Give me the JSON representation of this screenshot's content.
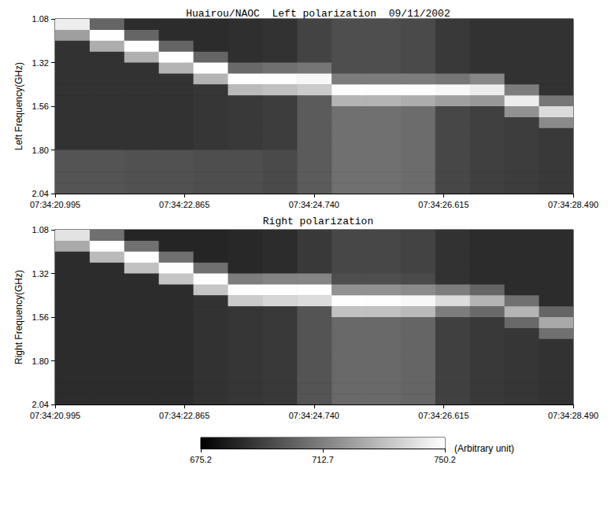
{
  "chart_data": {
    "type": "heatmap",
    "colorbar": {
      "range": [
        675.2,
        750.2
      ],
      "ticks": [
        675.2,
        712.7,
        750.2
      ],
      "label": "(Arbitrary unit)",
      "colors": [
        "#000000",
        "#ffffff"
      ]
    },
    "panels": [
      {
        "title": "Huairou/NAOC  Left polarization  09/11/2002",
        "y_label": "Left Frequency(GHz)",
        "xlim": [
          20.995,
          28.49
        ],
        "xticks": [
          {
            "value": 20.995,
            "label": "07:34:20.995"
          },
          {
            "value": 22.865,
            "label": "07:34:22.865"
          },
          {
            "value": 24.74,
            "label": "07:34:24.740"
          },
          {
            "value": 26.615,
            "label": "07:34:26.615"
          },
          {
            "value": 28.49,
            "label": "07:34:28.490"
          }
        ],
        "ylim": [
          2.04,
          1.08
        ],
        "yticks": [
          1.08,
          1.32,
          1.56,
          {
            "value": 1.8,
            "label": "1.80"
          },
          2.04
        ],
        "time_edges": [
          20.995,
          21.495,
          21.995,
          22.495,
          22.995,
          23.495,
          23.995,
          24.495,
          24.995,
          25.495,
          25.995,
          26.495,
          26.995,
          27.495,
          27.995,
          28.49
        ],
        "freq_edges": [
          1.08,
          1.14,
          1.2,
          1.26,
          1.32,
          1.38,
          1.44,
          1.5,
          1.56,
          1.62,
          1.68,
          1.74,
          1.8,
          1.86,
          1.92,
          1.98,
          2.04
        ],
        "cells": [
          [
            745,
            705,
            688,
            688,
            688,
            689,
            690,
            695,
            698,
            698,
            697,
            692,
            690,
            690,
            690
          ],
          [
            722,
            750,
            705,
            688,
            688,
            689,
            690,
            695,
            698,
            698,
            697,
            692,
            690,
            690,
            690
          ],
          [
            690,
            726,
            750,
            705,
            688,
            689,
            690,
            695,
            698,
            698,
            697,
            692,
            690,
            690,
            690
          ],
          [
            690,
            690,
            727,
            750,
            705,
            689,
            690,
            695,
            698,
            698,
            697,
            692,
            690,
            690,
            690
          ],
          [
            690,
            690,
            690,
            728,
            750,
            706,
            708,
            710,
            698,
            698,
            697,
            692,
            690,
            690,
            690
          ],
          [
            690,
            690,
            690,
            690,
            728,
            750,
            750,
            748,
            712,
            712,
            712,
            710,
            715,
            690,
            690
          ],
          [
            690,
            690,
            690,
            690,
            691,
            730,
            732,
            735,
            750,
            750,
            750,
            748,
            745,
            712,
            690
          ],
          [
            690,
            690,
            690,
            690,
            691,
            692,
            693,
            702,
            728,
            728,
            726,
            722,
            720,
            745,
            710
          ],
          [
            690,
            690,
            690,
            690,
            691,
            692,
            693,
            702,
            708,
            708,
            707,
            696,
            694,
            718,
            740
          ],
          [
            690,
            690,
            690,
            690,
            691,
            692,
            693,
            702,
            708,
            708,
            707,
            696,
            694,
            693,
            716
          ],
          [
            690,
            690,
            690,
            690,
            691,
            692,
            693,
            702,
            708,
            708,
            707,
            696,
            694,
            693,
            692
          ],
          [
            690,
            690,
            690,
            690,
            691,
            692,
            693,
            702,
            708,
            708,
            707,
            696,
            694,
            693,
            692
          ],
          [
            700,
            700,
            699,
            699,
            698,
            698,
            697,
            702,
            708,
            708,
            707,
            696,
            694,
            693,
            692
          ],
          [
            700,
            700,
            699,
            699,
            698,
            698,
            697,
            702,
            708,
            708,
            707,
            696,
            694,
            693,
            692
          ],
          [
            700,
            700,
            699,
            699,
            698,
            698,
            697,
            702,
            708,
            708,
            707,
            696,
            694,
            693,
            692
          ],
          [
            700,
            700,
            699,
            699,
            698,
            698,
            697,
            702,
            708,
            708,
            707,
            696,
            694,
            693,
            692
          ]
        ]
      },
      {
        "title": "Right polarization",
        "y_label": "Right Frequency(GHz)",
        "xlim": [
          20.995,
          28.49
        ],
        "xticks": [
          {
            "value": 20.995,
            "label": "07:34:20.995"
          },
          {
            "value": 22.865,
            "label": "07:34:22.865"
          },
          {
            "value": 24.74,
            "label": "07:34:24.740"
          },
          {
            "value": 26.615,
            "label": "07:34:26.615"
          },
          {
            "value": 28.49,
            "label": "07:34:28.490"
          }
        ],
        "ylim": [
          2.04,
          1.08
        ],
        "yticks": [
          1.08,
          1.32,
          1.56,
          {
            "value": 1.8,
            "label": "1.80"
          },
          2.04
        ],
        "time_edges": [
          20.995,
          21.495,
          21.995,
          22.495,
          22.995,
          23.495,
          23.995,
          24.495,
          24.995,
          25.495,
          25.995,
          26.495,
          26.995,
          27.495,
          27.995,
          28.49
        ],
        "freq_edges": [
          1.08,
          1.14,
          1.2,
          1.26,
          1.32,
          1.38,
          1.44,
          1.5,
          1.56,
          1.62,
          1.68,
          1.74,
          1.8,
          1.86,
          1.92,
          1.98,
          2.04
        ],
        "cells": [
          [
            742,
            708,
            686,
            686,
            686,
            687,
            688,
            692,
            696,
            696,
            695,
            690,
            688,
            688,
            688
          ],
          [
            725,
            750,
            708,
            686,
            686,
            687,
            688,
            692,
            696,
            696,
            695,
            690,
            688,
            688,
            688
          ],
          [
            688,
            730,
            750,
            708,
            686,
            687,
            688,
            692,
            696,
            696,
            695,
            690,
            688,
            688,
            688
          ],
          [
            688,
            688,
            732,
            750,
            708,
            687,
            688,
            692,
            696,
            696,
            695,
            690,
            688,
            688,
            688
          ],
          [
            688,
            688,
            688,
            733,
            750,
            712,
            714,
            714,
            698,
            698,
            697,
            690,
            688,
            688,
            688
          ],
          [
            688,
            688,
            688,
            688,
            733,
            750,
            750,
            750,
            718,
            718,
            716,
            712,
            705,
            688,
            688
          ],
          [
            688,
            688,
            688,
            688,
            690,
            735,
            738,
            740,
            750,
            750,
            748,
            740,
            728,
            708,
            688
          ],
          [
            688,
            688,
            688,
            688,
            690,
            691,
            692,
            700,
            732,
            732,
            730,
            712,
            706,
            728,
            705
          ],
          [
            688,
            688,
            688,
            688,
            690,
            691,
            692,
            700,
            706,
            706,
            705,
            694,
            692,
            706,
            725
          ],
          [
            688,
            688,
            688,
            688,
            690,
            691,
            692,
            700,
            706,
            706,
            705,
            694,
            692,
            691,
            708
          ],
          [
            688,
            688,
            688,
            688,
            690,
            691,
            692,
            700,
            706,
            706,
            705,
            694,
            692,
            691,
            690
          ],
          [
            688,
            688,
            688,
            688,
            690,
            691,
            692,
            700,
            706,
            706,
            705,
            694,
            692,
            691,
            690
          ],
          [
            688,
            688,
            688,
            688,
            690,
            691,
            692,
            700,
            706,
            706,
            705,
            694,
            692,
            691,
            690
          ],
          [
            688,
            688,
            688,
            688,
            690,
            691,
            692,
            700,
            706,
            706,
            705,
            694,
            692,
            691,
            690
          ],
          [
            688,
            688,
            688,
            688,
            690,
            691,
            692,
            700,
            706,
            706,
            705,
            694,
            692,
            691,
            690
          ],
          [
            688,
            688,
            688,
            688,
            690,
            691,
            692,
            700,
            706,
            706,
            705,
            694,
            692,
            691,
            690
          ]
        ]
      }
    ]
  }
}
